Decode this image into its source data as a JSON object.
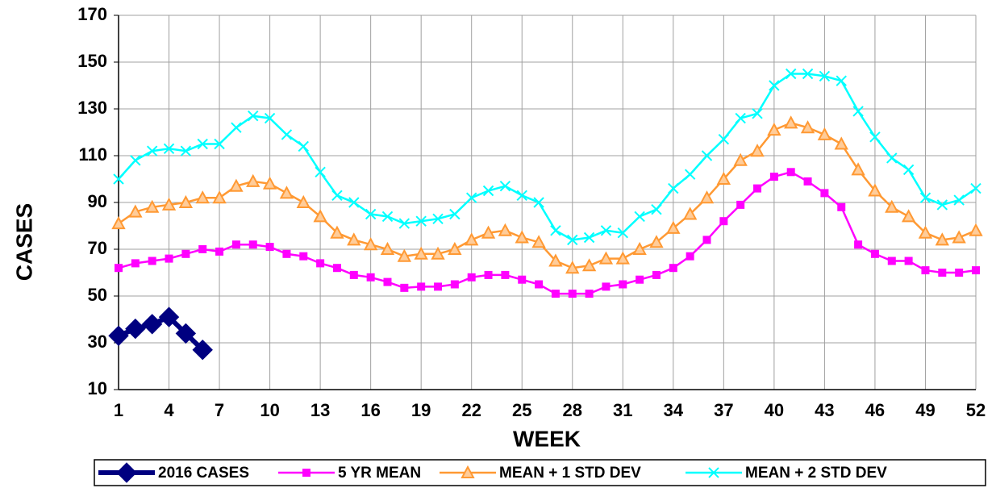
{
  "chart_data": {
    "type": "line",
    "xlabel": "WEEK",
    "ylabel": "CASES",
    "categories": [
      1,
      null,
      null,
      4,
      null,
      null,
      7,
      null,
      null,
      10,
      null,
      null,
      13,
      null,
      null,
      16,
      null,
      null,
      19,
      null,
      null,
      22,
      null,
      null,
      25,
      null,
      null,
      28,
      null,
      null,
      31,
      null,
      null,
      34,
      null,
      null,
      37,
      null,
      null,
      40,
      null,
      null,
      43,
      null,
      null,
      46,
      null,
      null,
      49,
      null,
      null,
      52
    ],
    "series": [
      {
        "name": "2016 CASES",
        "color": "#000080",
        "marker": "diamond",
        "values": [
          33,
          36,
          38,
          41,
          34,
          27,
          null,
          null,
          null,
          null,
          null,
          null,
          null,
          null,
          null,
          null,
          null,
          null,
          null,
          null,
          null,
          null,
          null,
          null,
          null,
          null,
          null,
          null,
          null,
          null,
          null,
          null,
          null,
          null,
          null,
          null,
          null,
          null,
          null,
          null,
          null,
          null,
          null,
          null,
          null,
          null,
          null,
          null,
          null,
          null,
          null,
          null
        ]
      },
      {
        "name": "5 YR MEAN",
        "color": "#ff00ff",
        "marker": "square",
        "values": [
          62,
          64,
          65,
          66,
          68,
          70,
          69,
          72,
          72,
          71,
          68,
          67,
          64,
          62,
          59,
          58,
          56,
          53.5,
          54,
          54,
          55,
          58,
          59,
          59,
          57,
          55,
          51,
          51,
          51,
          54,
          55,
          57,
          59,
          62,
          67,
          74,
          82,
          89,
          96,
          101,
          103,
          99,
          94,
          88,
          72,
          68,
          65,
          65,
          61,
          60,
          60,
          61
        ]
      },
      {
        "name": "MEAN + 1 STD DEV",
        "color": "#ff9933",
        "marker": "triangle",
        "values": [
          81,
          86,
          88,
          89,
          90,
          92,
          92,
          97,
          99,
          98,
          94,
          90,
          84,
          77,
          74,
          72,
          70,
          67,
          68,
          68,
          70,
          74,
          77,
          78,
          75,
          73,
          65,
          62,
          63,
          66,
          66,
          70,
          73,
          79,
          85,
          92,
          100,
          108,
          112,
          121,
          124,
          122,
          119,
          115,
          104,
          95,
          88,
          84,
          77,
          74,
          75,
          78
        ]
      },
      {
        "name": "MEAN + 2 STD DEV",
        "color": "#00ffff",
        "marker": "x",
        "values": [
          100,
          108,
          112,
          113,
          112,
          115,
          115,
          122,
          127,
          126,
          119,
          114,
          103,
          93,
          90,
          85,
          84,
          81,
          82,
          83,
          85,
          92,
          95,
          97,
          93,
          90,
          78,
          74,
          75,
          78,
          77,
          84,
          87,
          96,
          102,
          110,
          117,
          126,
          128,
          140,
          145,
          145,
          144,
          142,
          129,
          118,
          109,
          104,
          92,
          89,
          91,
          96
        ]
      }
    ],
    "ylim": [
      10,
      170
    ],
    "yticks": [
      10,
      30,
      50,
      70,
      90,
      110,
      130,
      150,
      170
    ],
    "grid": true,
    "legend": "bottom"
  }
}
